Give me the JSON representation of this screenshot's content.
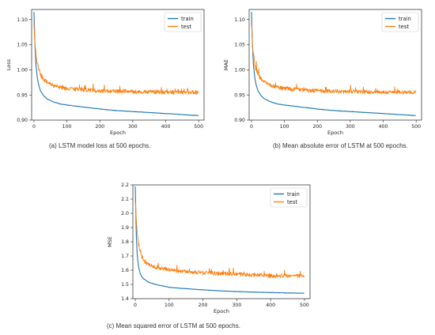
{
  "figure": {
    "captions": [
      "(a) LSTM model loss at 500 epochs.",
      "(b) Mean absolute error of LSTM at 500 epochs.",
      "(c) Mean squared error of LSTM at 500 epochs."
    ]
  },
  "colors": {
    "train": "#1f77b4",
    "test": "#ff7f0e"
  },
  "chart_data": [
    {
      "type": "line",
      "xlabel": "Epoch",
      "ylabel": "Loss",
      "xlim": [
        0,
        500
      ],
      "ylim": [
        0.9,
        1.12
      ],
      "xticks": [
        0,
        100,
        200,
        300,
        400,
        500
      ],
      "yticks": [
        0.9,
        0.95,
        1.0,
        1.05,
        1.1
      ],
      "legend": "top-right",
      "grid": false,
      "series": [
        {
          "name": "train",
          "x": [
            0,
            3,
            6,
            10,
            15,
            20,
            30,
            40,
            60,
            80,
            100,
            150,
            200,
            250,
            300,
            350,
            400,
            450,
            499
          ],
          "y": [
            1.115,
            1.05,
            1.01,
            0.985,
            0.968,
            0.958,
            0.948,
            0.942,
            0.936,
            0.932,
            0.93,
            0.926,
            0.922,
            0.919,
            0.917,
            0.915,
            0.913,
            0.911,
            0.909
          ]
        },
        {
          "name": "test",
          "x": [
            0,
            3,
            6,
            10,
            15,
            20,
            30,
            40,
            60,
            80,
            100,
            150,
            200,
            250,
            300,
            350,
            400,
            450,
            499
          ],
          "y": [
            1.095,
            1.05,
            1.03,
            1.01,
            1.0,
            0.99,
            0.98,
            0.975,
            0.968,
            0.965,
            0.962,
            0.96,
            0.958,
            0.957,
            0.956,
            0.956,
            0.955,
            0.955,
            0.955
          ]
        }
      ]
    },
    {
      "type": "line",
      "xlabel": "Epoch",
      "ylabel": "MAE",
      "xlim": [
        0,
        500
      ],
      "ylim": [
        0.9,
        1.12
      ],
      "xticks": [
        0,
        100,
        200,
        300,
        400,
        500
      ],
      "yticks": [
        0.9,
        0.95,
        1.0,
        1.05,
        1.1
      ],
      "legend": "top-right",
      "grid": false,
      "series": [
        {
          "name": "train",
          "x": [
            0,
            3,
            6,
            10,
            15,
            20,
            30,
            40,
            60,
            80,
            100,
            150,
            200,
            250,
            300,
            350,
            400,
            450,
            499
          ],
          "y": [
            1.115,
            1.05,
            1.01,
            0.985,
            0.968,
            0.958,
            0.948,
            0.942,
            0.936,
            0.932,
            0.93,
            0.926,
            0.922,
            0.919,
            0.917,
            0.915,
            0.913,
            0.911,
            0.909
          ]
        },
        {
          "name": "test",
          "x": [
            0,
            3,
            6,
            10,
            15,
            20,
            30,
            40,
            60,
            80,
            100,
            150,
            200,
            250,
            300,
            350,
            400,
            450,
            499
          ],
          "y": [
            1.095,
            1.05,
            1.03,
            1.01,
            1.0,
            0.99,
            0.98,
            0.975,
            0.968,
            0.965,
            0.962,
            0.96,
            0.958,
            0.957,
            0.956,
            0.956,
            0.955,
            0.955,
            0.955
          ]
        }
      ]
    },
    {
      "type": "line",
      "xlabel": "Epoch",
      "ylabel": "MSE",
      "xlim": [
        0,
        500
      ],
      "ylim": [
        1.4,
        2.2
      ],
      "xticks": [
        0,
        100,
        200,
        300,
        400,
        500
      ],
      "yticks": [
        1.4,
        1.5,
        1.6,
        1.7,
        1.8,
        1.9,
        2.0,
        2.1,
        2.2
      ],
      "legend": "top-right",
      "grid": false,
      "series": [
        {
          "name": "train",
          "x": [
            0,
            3,
            6,
            10,
            15,
            20,
            30,
            40,
            60,
            80,
            100,
            150,
            200,
            250,
            300,
            350,
            400,
            450,
            499
          ],
          "y": [
            2.19,
            1.85,
            1.7,
            1.62,
            1.575,
            1.55,
            1.53,
            1.515,
            1.5,
            1.49,
            1.48,
            1.47,
            1.462,
            1.455,
            1.45,
            1.446,
            1.443,
            1.44,
            1.438
          ]
        },
        {
          "name": "test",
          "x": [
            0,
            3,
            6,
            10,
            15,
            20,
            30,
            40,
            60,
            80,
            100,
            150,
            200,
            250,
            300,
            350,
            400,
            450,
            499
          ],
          "y": [
            2.1,
            1.95,
            1.85,
            1.78,
            1.73,
            1.7,
            1.66,
            1.64,
            1.62,
            1.61,
            1.6,
            1.59,
            1.58,
            1.575,
            1.57,
            1.565,
            1.56,
            1.56,
            1.56
          ]
        }
      ]
    }
  ]
}
